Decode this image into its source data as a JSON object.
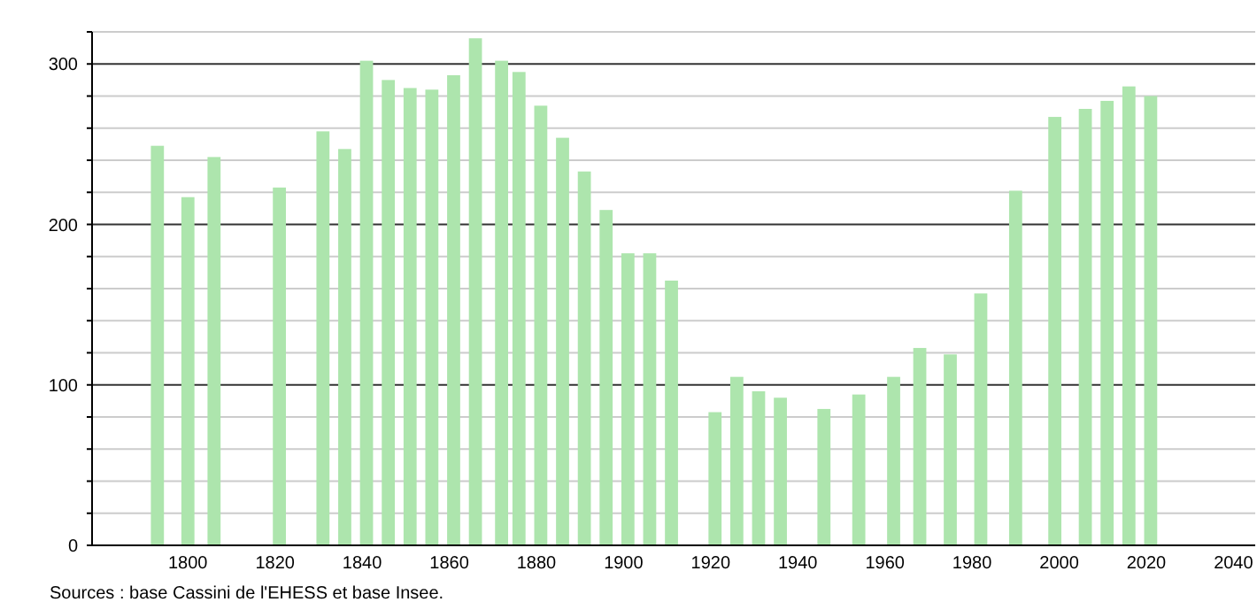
{
  "chart_data": {
    "type": "bar",
    "x": [
      1793,
      1800,
      1806,
      1821,
      1831,
      1836,
      1841,
      1846,
      1851,
      1856,
      1861,
      1866,
      1872,
      1876,
      1881,
      1886,
      1891,
      1896,
      1901,
      1906,
      1911,
      1921,
      1926,
      1931,
      1936,
      1946,
      1954,
      1962,
      1968,
      1975,
      1982,
      1990,
      1999,
      2006,
      2011,
      2016,
      2021
    ],
    "values": [
      249,
      217,
      242,
      223,
      258,
      247,
      302,
      290,
      285,
      284,
      293,
      316,
      302,
      295,
      274,
      254,
      233,
      209,
      182,
      182,
      165,
      83,
      105,
      96,
      92,
      85,
      94,
      105,
      123,
      119,
      157,
      221,
      267,
      272,
      277,
      286,
      280
    ],
    "color": "#ade5ad",
    "xlim": [
      1778,
      2045
    ],
    "xticks": [
      1800,
      1820,
      1840,
      1860,
      1880,
      1900,
      1920,
      1940,
      1960,
      1980,
      2000,
      2020,
      2040
    ],
    "ylim": [
      0,
      320
    ],
    "yticks": [
      0,
      {
        "value": 20,
        "label": null
      },
      {
        "value": 40,
        "label": null
      },
      {
        "value": 60,
        "label": null
      },
      {
        "value": 80,
        "label": null
      },
      100,
      {
        "value": 120,
        "label": null
      },
      {
        "value": 140,
        "label": null
      },
      {
        "value": 160,
        "label": null
      },
      {
        "value": 180,
        "label": null
      },
      200,
      {
        "value": 220,
        "label": null
      },
      {
        "value": 240,
        "label": null
      },
      {
        "value": 260,
        "label": null
      },
      {
        "value": 280,
        "label": null
      },
      300,
      {
        "value": 320,
        "label": null
      }
    ],
    "grid": true,
    "annotations": [
      "Sources : base Cassini de l'EHESS et base Insee."
    ]
  }
}
